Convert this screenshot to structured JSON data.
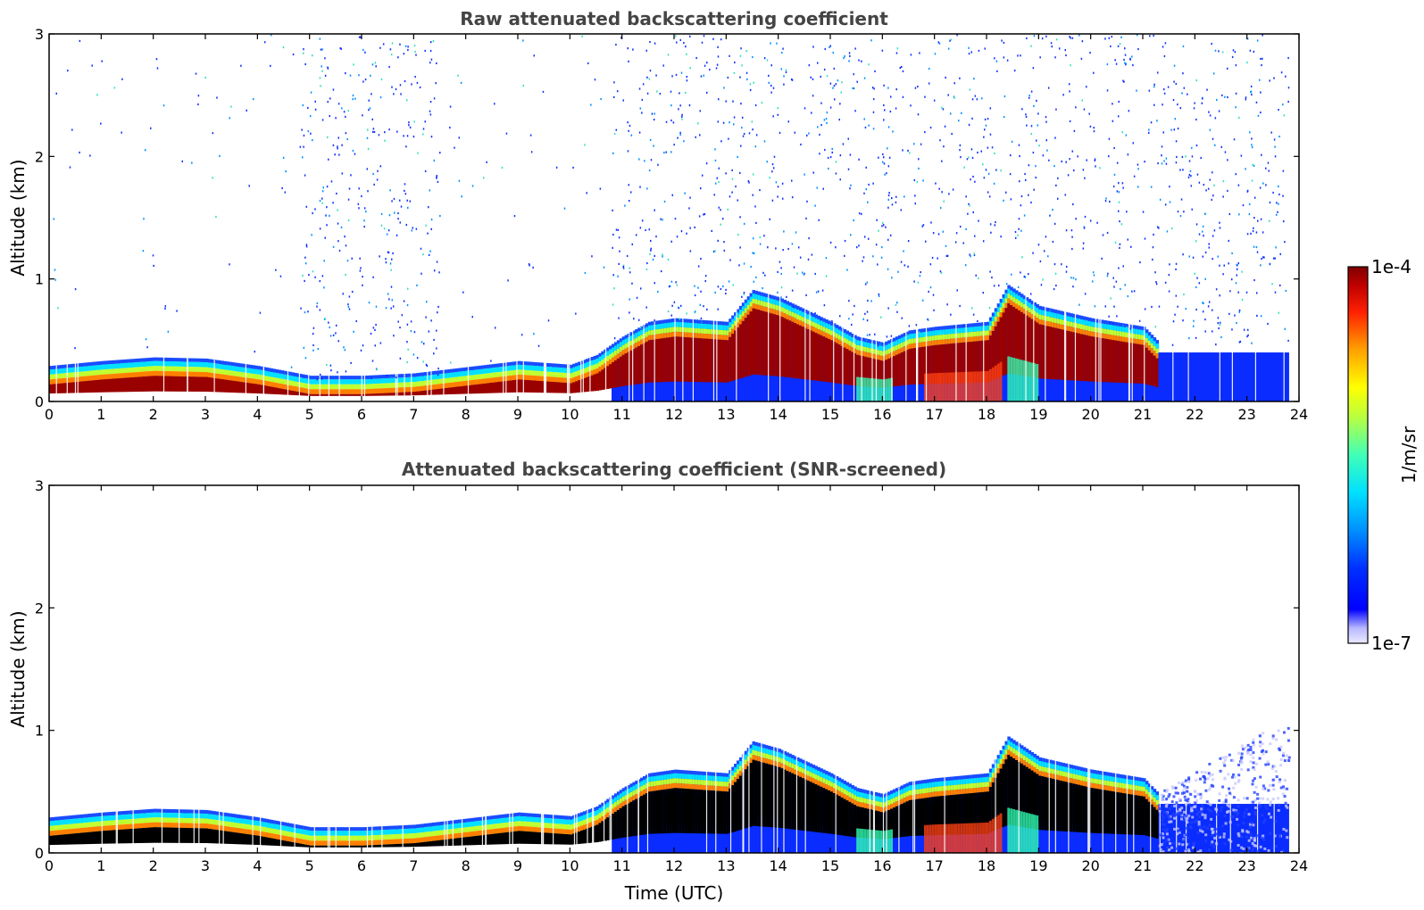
{
  "chart_data": [
    {
      "type": "heatmap",
      "title": "Raw attenuated backscattering coefficient",
      "xlabel": "",
      "ylabel": "Altitude (km)",
      "xlim": [
        0,
        24
      ],
      "ylim": [
        0,
        3
      ],
      "xticks": [
        "0",
        "1",
        "2",
        "3",
        "4",
        "5",
        "6",
        "7",
        "8",
        "9",
        "10",
        "11",
        "12",
        "13",
        "14",
        "15",
        "16",
        "17",
        "18",
        "19",
        "20",
        "21",
        "22",
        "23",
        "24"
      ],
      "yticks": [
        "0",
        "1",
        "2",
        "3"
      ],
      "layer_top_km": [
        [
          0,
          0.26
        ],
        [
          1,
          0.3
        ],
        [
          2,
          0.33
        ],
        [
          3,
          0.32
        ],
        [
          4,
          0.26
        ],
        [
          5,
          0.18
        ],
        [
          6,
          0.18
        ],
        [
          7,
          0.2
        ],
        [
          8,
          0.25
        ],
        [
          9,
          0.3
        ],
        [
          10,
          0.27
        ],
        [
          10.5,
          0.35
        ],
        [
          11,
          0.5
        ],
        [
          11.5,
          0.62
        ],
        [
          12,
          0.65
        ],
        [
          13,
          0.62
        ],
        [
          13.5,
          0.88
        ],
        [
          14,
          0.82
        ],
        [
          15,
          0.62
        ],
        [
          15.5,
          0.5
        ],
        [
          16,
          0.45
        ],
        [
          16.5,
          0.55
        ],
        [
          17,
          0.58
        ],
        [
          17.5,
          0.6
        ],
        [
          18,
          0.62
        ],
        [
          18.4,
          0.92
        ],
        [
          19,
          0.75
        ],
        [
          20,
          0.65
        ],
        [
          21,
          0.58
        ],
        [
          21.3,
          0.45
        ]
      ],
      "high_level_noise": "present",
      "background_signal_extent_h": [
        [
          4.8,
          7.5
        ],
        [
          10.8,
          24
        ]
      ],
      "colorbar_label": "1/m/sr",
      "colorbar_min_label": "1e-7",
      "colorbar_max_label": "1e-4",
      "colormap": "jet"
    },
    {
      "type": "heatmap",
      "title": "Attenuated backscattering coefficient (SNR-screened)",
      "xlabel": "Time (UTC)",
      "ylabel": "Altitude (km)",
      "xlim": [
        0,
        24
      ],
      "ylim": [
        0,
        3
      ],
      "xticks": [
        "0",
        "1",
        "2",
        "3",
        "4",
        "5",
        "6",
        "7",
        "8",
        "9",
        "10",
        "11",
        "12",
        "13",
        "14",
        "15",
        "16",
        "17",
        "18",
        "19",
        "20",
        "21",
        "22",
        "23",
        "24"
      ],
      "yticks": [
        "0",
        "1",
        "2",
        "3"
      ],
      "layer_top_km": [
        [
          0,
          0.26
        ],
        [
          1,
          0.3
        ],
        [
          2,
          0.33
        ],
        [
          3,
          0.32
        ],
        [
          4,
          0.26
        ],
        [
          5,
          0.18
        ],
        [
          6,
          0.18
        ],
        [
          7,
          0.2
        ],
        [
          8,
          0.25
        ],
        [
          9,
          0.3
        ],
        [
          10,
          0.27
        ],
        [
          10.5,
          0.35
        ],
        [
          11,
          0.5
        ],
        [
          11.5,
          0.62
        ],
        [
          12,
          0.65
        ],
        [
          13,
          0.62
        ],
        [
          13.5,
          0.88
        ],
        [
          14,
          0.82
        ],
        [
          15,
          0.62
        ],
        [
          15.5,
          0.5
        ],
        [
          16,
          0.45
        ],
        [
          16.5,
          0.55
        ],
        [
          17,
          0.58
        ],
        [
          17.5,
          0.6
        ],
        [
          18,
          0.62
        ],
        [
          18.4,
          0.92
        ],
        [
          19,
          0.75
        ],
        [
          20,
          0.65
        ],
        [
          21,
          0.58
        ],
        [
          21.3,
          0.45
        ]
      ],
      "high_level_noise": "removed",
      "saturated_core_color": "#000000"
    }
  ],
  "colors": {
    "title": "#444444",
    "background": "#ffffff"
  }
}
